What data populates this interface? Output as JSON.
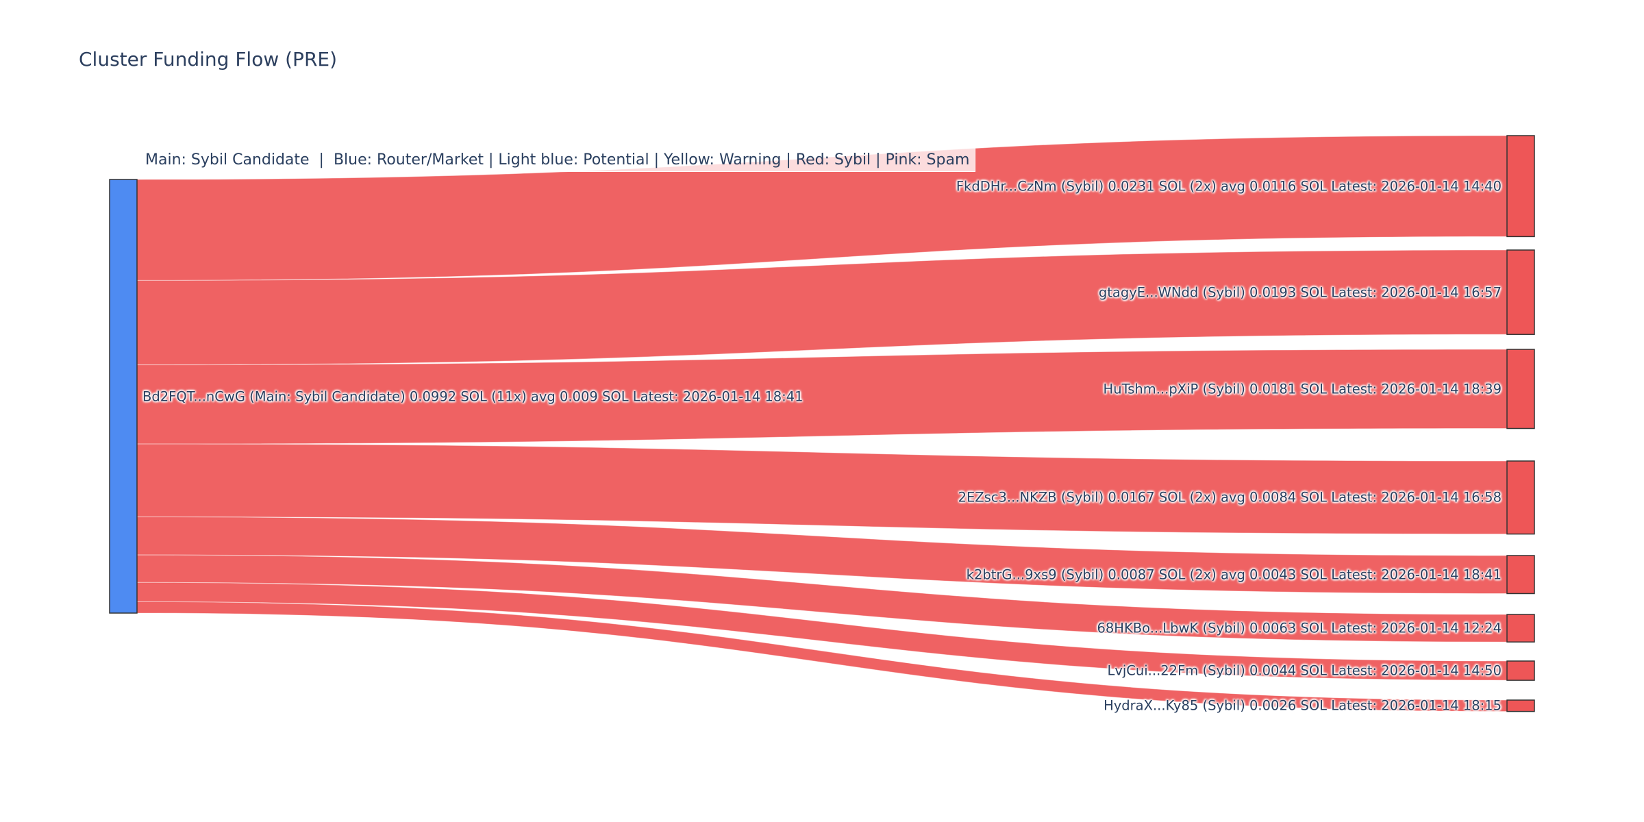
{
  "page_background": "#ffffff",
  "chart_data": {
    "type": "sankey",
    "title": "Cluster Funding Flow (PRE)",
    "legend_annotation": "Main: Sybil Candidate  |  Blue: Router/Market | Light blue: Potential | Yellow: Warning | Red: Sybil | Pink: Spam",
    "unit": "SOL",
    "colors": {
      "source_node_fill": "#4e8bf2",
      "target_node_fill": "#ee5657",
      "link_fill": "#ee5657",
      "node_border": "#333333",
      "label_text": "#2a3f5f",
      "title_text": "#2c3f5e",
      "legend_background": "rgba(255,255,255,0.78)"
    },
    "source_node": {
      "address": "Bd2FQT...nCwG",
      "classification": "Main: Sybil Candidate",
      "total_sol": 0.0992,
      "tx_count": 11,
      "avg_sol": 0.009,
      "latest": "2026-01-14 18:41",
      "label": "Bd2FQT...nCwG (Main: Sybil Candidate) 0.0992 SOL (11x) avg 0.009 SOL Latest: 2026-01-14 18:41"
    },
    "links": [
      {
        "target": "FkdDHr...CzNm",
        "classification": "Sybil",
        "value_sol": 0.0231,
        "tx_count": 2,
        "avg_sol": 0.0116,
        "latest": "2026-01-14 14:40",
        "label": "FkdDHr...CzNm (Sybil) 0.0231 SOL (2x) avg 0.0116 SOL Latest: 2026-01-14 14:40"
      },
      {
        "target": "gtagyE...WNdd",
        "classification": "Sybil",
        "value_sol": 0.0193,
        "tx_count": 1,
        "avg_sol": null,
        "latest": "2026-01-14 16:57",
        "label": "gtagyE...WNdd (Sybil) 0.0193 SOL Latest: 2026-01-14 16:57"
      },
      {
        "target": "HuTshm...pXiP",
        "classification": "Sybil",
        "value_sol": 0.0181,
        "tx_count": 1,
        "avg_sol": null,
        "latest": "2026-01-14 18:39",
        "label": "HuTshm...pXiP (Sybil) 0.0181 SOL Latest: 2026-01-14 18:39"
      },
      {
        "target": "2EZsc3...NKZB",
        "classification": "Sybil",
        "value_sol": 0.0167,
        "tx_count": 2,
        "avg_sol": 0.0084,
        "latest": "2026-01-14 16:58",
        "label": "2EZsc3...NKZB (Sybil) 0.0167 SOL (2x) avg 0.0084 SOL Latest: 2026-01-14 16:58"
      },
      {
        "target": "k2btrG...9xs9",
        "classification": "Sybil",
        "value_sol": 0.0087,
        "tx_count": 2,
        "avg_sol": 0.0043,
        "latest": "2026-01-14 18:41",
        "label": "k2btrG...9xs9 (Sybil) 0.0087 SOL (2x) avg 0.0043 SOL Latest: 2026-01-14 18:41"
      },
      {
        "target": "68HKBo...LbwK",
        "classification": "Sybil",
        "value_sol": 0.0063,
        "tx_count": 1,
        "avg_sol": null,
        "latest": "2026-01-14 12:24",
        "label": "68HKBo...LbwK (Sybil) 0.0063 SOL Latest: 2026-01-14 12:24"
      },
      {
        "target": "LvjCui...22Fm",
        "classification": "Sybil",
        "value_sol": 0.0044,
        "tx_count": 1,
        "avg_sol": null,
        "latest": "2026-01-14 14:50",
        "label": "LvjCui...22Fm (Sybil) 0.0044 SOL Latest: 2026-01-14 14:50"
      },
      {
        "target": "HydraX...Ky85",
        "classification": "Sybil",
        "value_sol": 0.0026,
        "tx_count": 1,
        "avg_sol": null,
        "latest": "2026-01-14 18:15",
        "label": "HydraX...Ky85 (Sybil) 0.0026 SOL Latest: 2026-01-14 18:15"
      }
    ]
  }
}
